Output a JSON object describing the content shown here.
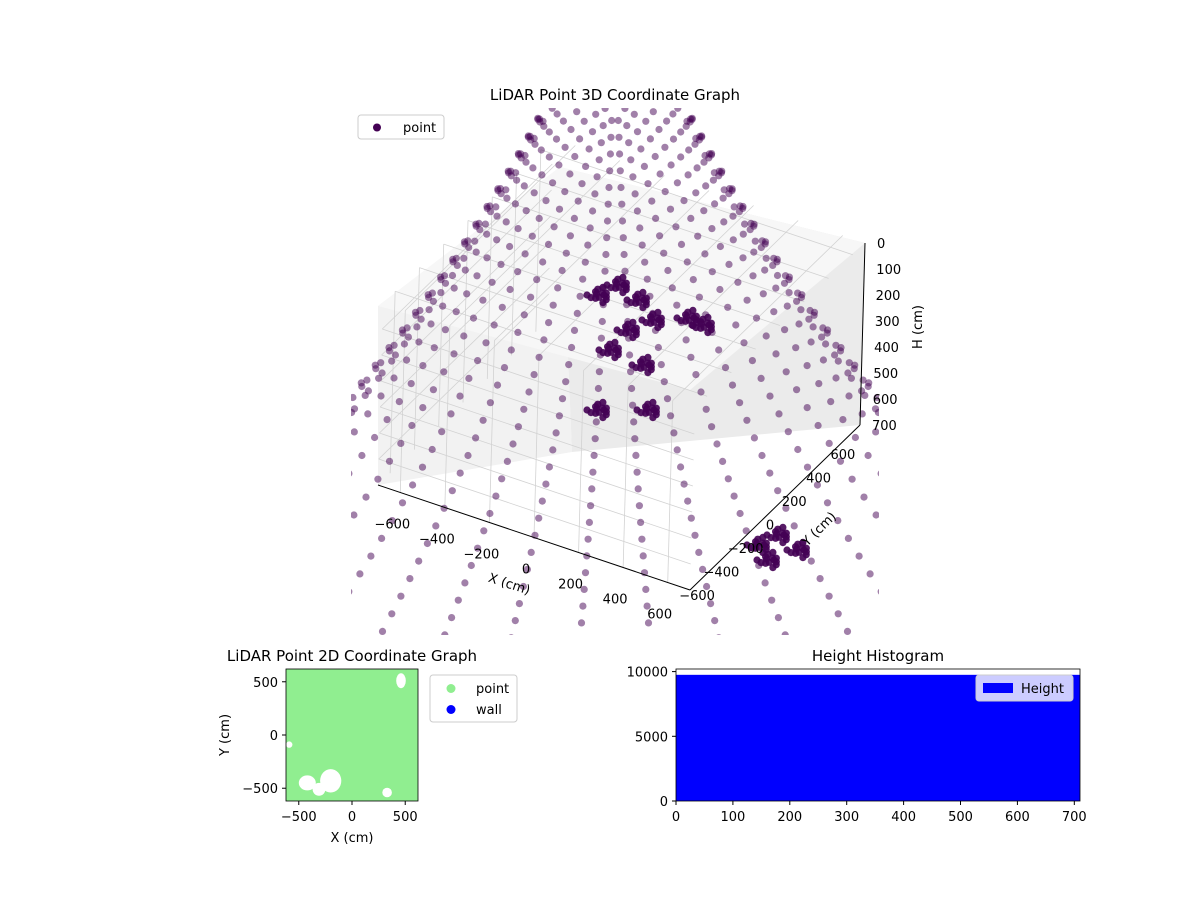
{
  "colors": {
    "point3d": "#440154",
    "point2d": "#90ee90",
    "wall": "#0000ff",
    "hist": "#0000ff",
    "pane": "#f2f2f2",
    "grid": "#d2d2d2"
  },
  "chart_data": [
    {
      "type": "scatter",
      "projection": "3d",
      "title": "LiDAR Point 3D Coordinate Graph",
      "xlabel": "X (cm)",
      "ylabel": "Y (cm)",
      "zlabel": "H (cm)",
      "xlim": [
        -700,
        700
      ],
      "ylim": [
        -700,
        700
      ],
      "zlim": [
        0,
        700
      ],
      "z_inverted": true,
      "xticks": [
        "−600",
        "−400",
        "−200",
        "0",
        "200",
        "400",
        "600"
      ],
      "yticks": [
        "−600",
        "−400",
        "−200",
        "0",
        "200",
        "400",
        "600"
      ],
      "zticks": [
        "0",
        "100",
        "200",
        "300",
        "400",
        "500",
        "600",
        "700"
      ],
      "legend": {
        "location": "upper-left",
        "entries": [
          "point"
        ]
      },
      "grid": true,
      "series": [
        {
          "name": "point",
          "description_of_shape": "concentric rings of LiDAR returns on a sphere, plus a dense object cluster near x 0..200, y 0..200, h 100..500"
        }
      ]
    },
    {
      "type": "scatter",
      "title": "LiDAR Point 2D Coordinate Graph",
      "xlabel": "X (cm)",
      "ylabel": "Y (cm)",
      "xlim": [
        -620,
        620
      ],
      "ylim": [
        -620,
        620
      ],
      "xticks": [
        "−500",
        "0",
        "500"
      ],
      "yticks": [
        "−500",
        "0",
        "500"
      ],
      "legend": {
        "location": "outside-right",
        "entries": [
          "point",
          "wall"
        ]
      },
      "series": [
        {
          "name": "point",
          "fill": "dense coverage of nearly the whole plane"
        },
        {
          "name": "wall",
          "points": []
        }
      ],
      "gaps": [
        {
          "cx": -420,
          "cy": -450,
          "rx": 80,
          "ry": 70
        },
        {
          "cx": -200,
          "cy": -430,
          "rx": 100,
          "ry": 110
        },
        {
          "cx": -310,
          "cy": -510,
          "rx": 60,
          "ry": 60
        },
        {
          "cx": 330,
          "cy": -540,
          "rx": 45,
          "ry": 45
        },
        {
          "cx": -590,
          "cy": -90,
          "rx": 30,
          "ry": 30
        },
        {
          "cx": 460,
          "cy": 510,
          "rx": 45,
          "ry": 70
        }
      ]
    },
    {
      "type": "bar",
      "title": "Height Histogram",
      "xlim": [
        0,
        710
      ],
      "ylim": [
        0,
        10200
      ],
      "xticks": [
        0,
        100,
        200,
        300,
        400,
        500,
        600,
        700
      ],
      "yticks": [
        0,
        5000,
        10000
      ],
      "legend": {
        "location": "upper-right",
        "entries": [
          "Height"
        ]
      },
      "series": [
        {
          "name": "Height",
          "bins": [
            0,
            710
          ],
          "value": 9750
        }
      ]
    }
  ]
}
